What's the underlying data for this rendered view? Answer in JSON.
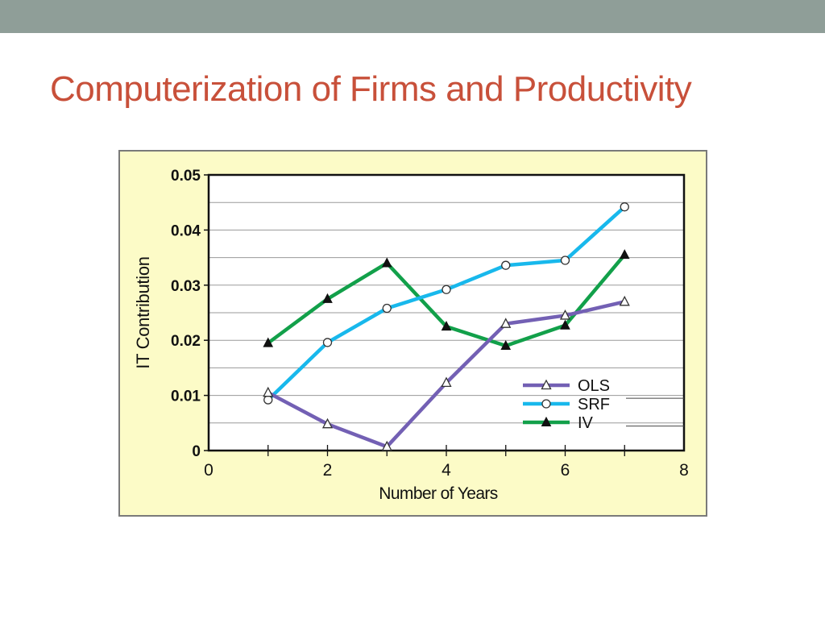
{
  "colors": {
    "top_band": "#8f9e98",
    "title": "#c8503a",
    "panel_background": "#fcfbc7",
    "plot_background": "#ffffff",
    "grid": "#9a9a9a",
    "axis": "#111111"
  },
  "slide": {
    "title": "Computerization of Firms and Productivity"
  },
  "chart_data": {
    "type": "line",
    "title": "",
    "xlabel": "Number of Years",
    "ylabel": "IT Contribution",
    "xlim": [
      0,
      8
    ],
    "ylim": [
      0,
      0.05
    ],
    "x_ticks": [
      "0",
      "2",
      "4",
      "6",
      "8"
    ],
    "y_ticks": [
      "0",
      "0.01",
      "0.02",
      "0.03",
      "0.04",
      "0.05"
    ],
    "grid": "horizontal",
    "legend_position": "bottom-right",
    "series": [
      {
        "name": "OLS",
        "color": "#7360b4",
        "marker": "open-triangle",
        "x": [
          1,
          2,
          3,
          4,
          5,
          6,
          7
        ],
        "y": [
          0.0105,
          0.0048,
          0.0007,
          0.0123,
          0.023,
          0.0245,
          0.027
        ]
      },
      {
        "name": "SRF",
        "color": "#18b8ec",
        "marker": "open-circle",
        "x": [
          1,
          2,
          3,
          4,
          5,
          6,
          7
        ],
        "y": [
          0.0092,
          0.0196,
          0.0258,
          0.0292,
          0.0336,
          0.0345,
          0.0442
        ]
      },
      {
        "name": "IV",
        "color": "#12a04a",
        "marker": "filled-triangle",
        "x": [
          1,
          2,
          3,
          4,
          5,
          6,
          7
        ],
        "y": [
          0.0195,
          0.0275,
          0.034,
          0.0225,
          0.019,
          0.0227,
          0.0355
        ]
      }
    ]
  }
}
